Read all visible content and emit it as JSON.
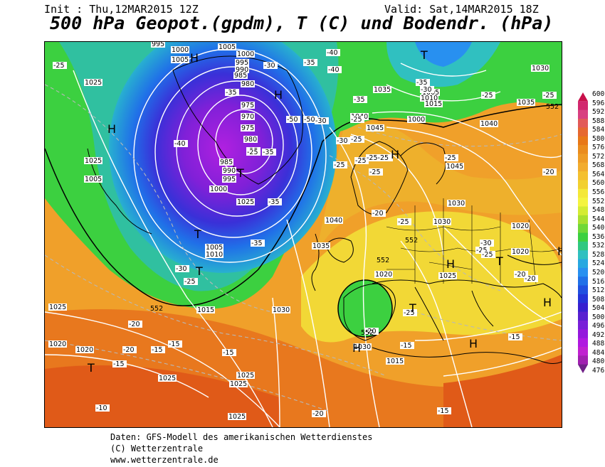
{
  "header": {
    "init": "Init : Thu,12MAR2015 12Z",
    "valid": "Valid: Sat,14MAR2015 18Z",
    "title": "500 hPa Geopot.(gpdm), T (C) und Bodendr. (hPa)"
  },
  "colorbar": {
    "labels": [
      "600",
      "596",
      "592",
      "588",
      "584",
      "580",
      "576",
      "572",
      "568",
      "564",
      "560",
      "556",
      "552",
      "548",
      "544",
      "540",
      "536",
      "532",
      "528",
      "524",
      "520",
      "516",
      "512",
      "508",
      "504",
      "500",
      "496",
      "492",
      "488",
      "484",
      "480",
      "476"
    ],
    "colors": [
      "#c8104a",
      "#d2286e",
      "#d84080",
      "#e25a58",
      "#e66830",
      "#e87818",
      "#ea8c1e",
      "#ee9c26",
      "#f2ac2e",
      "#f4c030",
      "#f2d030",
      "#f4e838",
      "#f4f440",
      "#d4ec34",
      "#a8e030",
      "#70d838",
      "#3cd040",
      "#30c880",
      "#30c0c0",
      "#28a8e0",
      "#2890f0",
      "#2070e8",
      "#2050e0",
      "#2434d8",
      "#3820d0",
      "#5820d0",
      "#7820d8",
      "#9418dc",
      "#b018e0",
      "#c020d0",
      "#a020b0",
      "#702088"
    ]
  },
  "map": {
    "pressure_labels": [
      {
        "text": "995"
      },
      {
        "text": "1000"
      },
      {
        "text": "1005"
      },
      {
        "text": "1005"
      },
      {
        "text": "1000"
      },
      {
        "text": "995"
      },
      {
        "text": "990"
      },
      {
        "text": "985"
      },
      {
        "text": "980"
      },
      {
        "text": "975"
      },
      {
        "text": "970"
      },
      {
        "text": "975"
      },
      {
        "text": "980"
      },
      {
        "text": "985"
      },
      {
        "text": "990"
      },
      {
        "text": "995"
      },
      {
        "text": "1000"
      },
      {
        "text": "1025"
      },
      {
        "text": "1025"
      },
      {
        "text": "1025"
      },
      {
        "text": "1005"
      },
      {
        "text": "1005"
      },
      {
        "text": "1010"
      },
      {
        "text": "1015"
      },
      {
        "text": "1025"
      },
      {
        "text": "1020"
      },
      {
        "text": "1025"
      },
      {
        "text": "1020"
      },
      {
        "text": "1025"
      },
      {
        "text": "1030"
      },
      {
        "text": "1000"
      },
      {
        "text": "1005"
      },
      {
        "text": "1010"
      },
      {
        "text": "1015"
      },
      {
        "text": "1035"
      },
      {
        "text": "1040"
      },
      {
        "text": "1045"
      },
      {
        "text": "1045"
      },
      {
        "text": "1040"
      },
      {
        "text": "1035"
      },
      {
        "text": "1030"
      },
      {
        "text": "1040"
      },
      {
        "text": "1035"
      },
      {
        "text": "1030"
      },
      {
        "text": "1020"
      },
      {
        "text": "1020"
      },
      {
        "text": "1025"
      },
      {
        "text": "1020"
      },
      {
        "text": "1015"
      },
      {
        "text": "1030"
      },
      {
        "text": "1025"
      },
      {
        "text": "1025"
      },
      {
        "text": "1030"
      }
    ],
    "temperature_labels": [
      {
        "text": "-25"
      },
      {
        "text": "-35"
      },
      {
        "text": "-40"
      },
      {
        "text": "-40"
      },
      {
        "text": "-35"
      },
      {
        "text": "-30"
      },
      {
        "text": "-35"
      },
      {
        "text": "-30"
      },
      {
        "text": "-25"
      },
      {
        "text": "-35"
      },
      {
        "text": "-25"
      },
      {
        "text": "-40"
      },
      {
        "text": "-35"
      },
      {
        "text": "-30"
      },
      {
        "text": "-25"
      },
      {
        "text": "-20"
      },
      {
        "text": "-20"
      },
      {
        "text": "-15"
      },
      {
        "text": "-15"
      },
      {
        "text": "-15"
      },
      {
        "text": "-15"
      },
      {
        "text": "-10"
      },
      {
        "text": "-20"
      },
      {
        "text": "-50"
      },
      {
        "text": "-50"
      },
      {
        "text": "-35"
      },
      {
        "text": "-35"
      },
      {
        "text": "-30"
      },
      {
        "text": "-30"
      },
      {
        "text": "-25"
      },
      {
        "text": "-25"
      },
      {
        "text": "-25"
      },
      {
        "text": "-25-25"
      },
      {
        "text": "-25"
      },
      {
        "text": "-25"
      },
      {
        "text": "-20"
      },
      {
        "text": "-25"
      },
      {
        "text": "-25"
      },
      {
        "text": "-25"
      },
      {
        "text": "-25"
      },
      {
        "text": "-25"
      },
      {
        "text": "-30"
      },
      {
        "text": "-25"
      },
      {
        "text": "-20"
      },
      {
        "text": "-20"
      },
      {
        "text": "-20"
      },
      {
        "text": "-15"
      },
      {
        "text": "-25"
      },
      {
        "text": "-20"
      },
      {
        "text": "-15"
      },
      {
        "text": "-15"
      }
    ],
    "geopotential_labels": [
      {
        "text": "552"
      },
      {
        "text": "552"
      },
      {
        "text": "552"
      },
      {
        "text": "552"
      },
      {
        "text": "552"
      }
    ],
    "pressure_centers": [
      {
        "text": "H"
      },
      {
        "text": "H"
      },
      {
        "text": "T"
      },
      {
        "text": "T"
      },
      {
        "text": "T"
      },
      {
        "text": "T"
      },
      {
        "text": "H"
      },
      {
        "text": "H"
      },
      {
        "text": "H"
      },
      {
        "text": "T"
      },
      {
        "text": "H"
      },
      {
        "text": "H"
      },
      {
        "text": "T"
      },
      {
        "text": "T"
      },
      {
        "text": "H"
      },
      {
        "text": "H"
      }
    ]
  },
  "footer": {
    "line1": "Daten: GFS-Modell des amerikanischen Wetterdienstes",
    "line2": "(C) Wetterzentrale",
    "line3": "www.wetterzentrale.de"
  }
}
